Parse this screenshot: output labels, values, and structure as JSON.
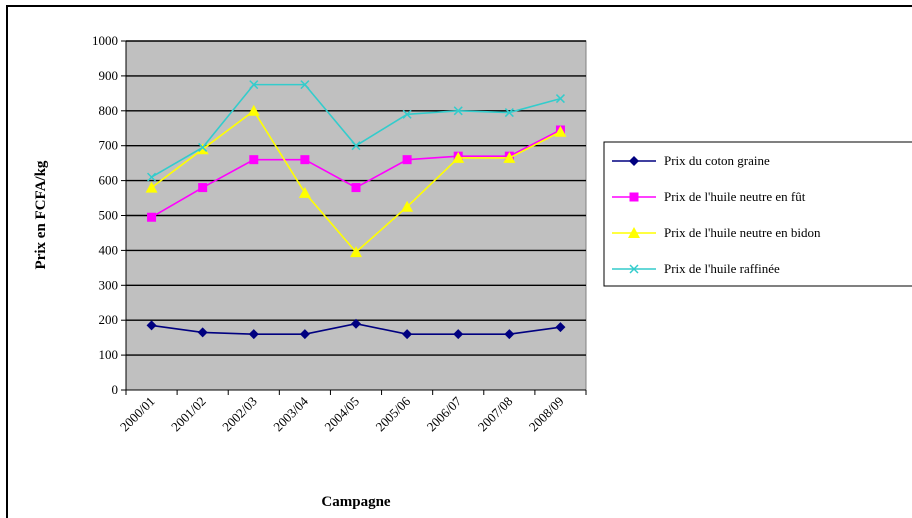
{
  "chart_data": {
    "type": "line",
    "title": "",
    "xlabel": "Campagne",
    "ylabel": "Prix en FCFA/kg",
    "ylim": [
      0,
      1000
    ],
    "yticks": [
      "0",
      "100",
      "200",
      "300",
      "400",
      "500",
      "600",
      "700",
      "800",
      "900",
      "1000"
    ],
    "categories": [
      "2000/01",
      "2001/02",
      "2002/03",
      "2003/04",
      "2004/05",
      "2005/06",
      "2006/07",
      "2007/08",
      "2008/09"
    ],
    "grid": true,
    "legend": "right",
    "plot_background": "#c0c0c0",
    "series": [
      {
        "name": "Prix du coton graine",
        "color": "#000080",
        "marker": "diamond",
        "values": [
          185,
          165,
          160,
          160,
          190,
          160,
          160,
          160,
          180
        ]
      },
      {
        "name": "Prix de l'huile neutre en fût",
        "color": "#ff00ff",
        "marker": "square",
        "values": [
          495,
          580,
          660,
          660,
          580,
          660,
          670,
          670,
          745
        ]
      },
      {
        "name": "Prix de l'huile neutre en bidon",
        "color": "#ffff00",
        "marker": "triangle",
        "values": [
          580,
          690,
          800,
          565,
          395,
          525,
          665,
          665,
          740
        ]
      },
      {
        "name": "Prix de l'huile raffinée",
        "color": "#33cccc",
        "marker": "x",
        "values": [
          610,
          695,
          875,
          875,
          700,
          790,
          800,
          795,
          835
        ]
      }
    ]
  }
}
